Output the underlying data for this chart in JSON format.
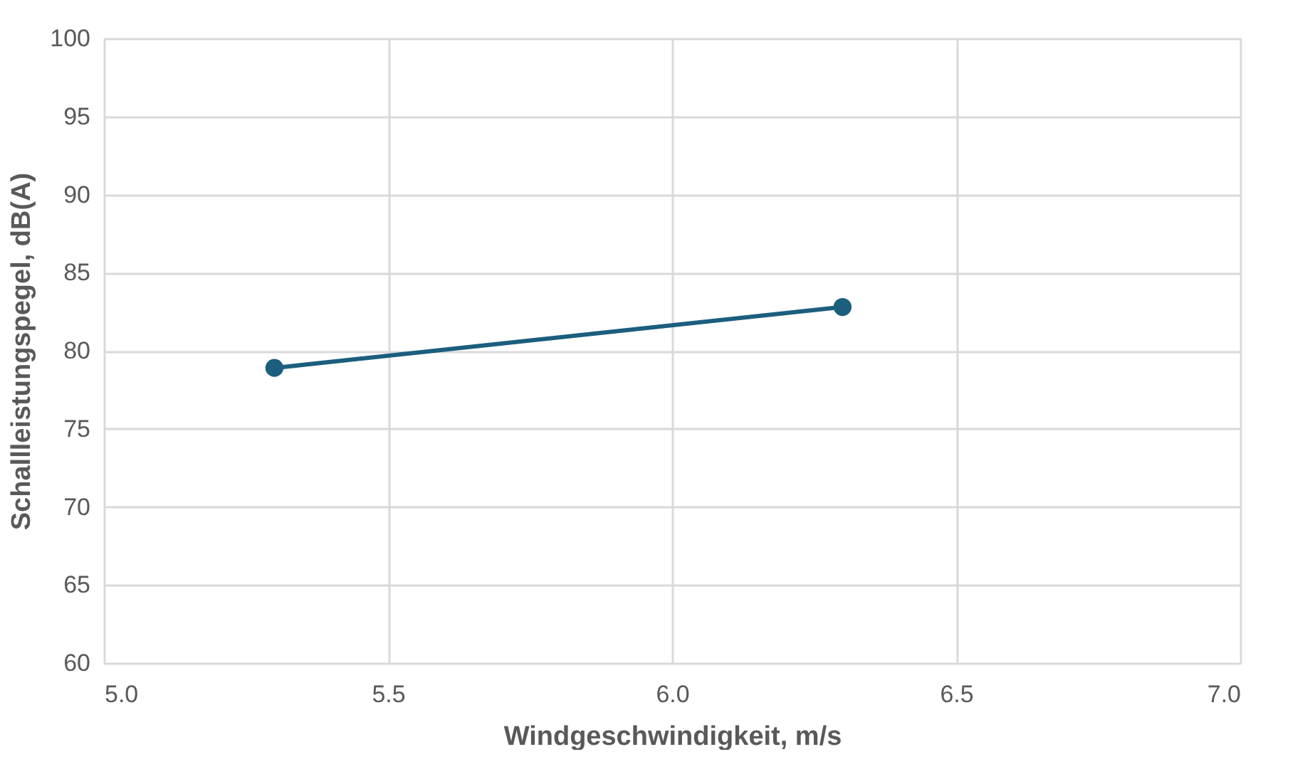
{
  "chart_data": {
    "type": "line",
    "xlabel": "Windgeschwindigkeit, m/s",
    "ylabel": "Schallleistungspegel, dB(A)",
    "x": [
      5.3,
      6.3
    ],
    "series": [
      {
        "color": "#1b5e7e",
        "values": [
          78.9,
          82.8
        ]
      }
    ],
    "xlim": [
      5.0,
      7.0
    ],
    "xticks": [
      {
        "value": 5.0,
        "label": "5.0"
      },
      {
        "value": 5.5,
        "label": "5.5"
      },
      {
        "value": 6.0,
        "label": "6.0"
      },
      {
        "value": 6.5,
        "label": "6.5"
      },
      {
        "value": 7.0,
        "label": "7.0"
      }
    ],
    "ylim": [
      60,
      100
    ],
    "yticks": [
      60,
      65,
      70,
      75,
      80,
      85,
      90,
      95,
      100
    ],
    "grid": true,
    "marker": "circle",
    "line_style": "solid"
  }
}
